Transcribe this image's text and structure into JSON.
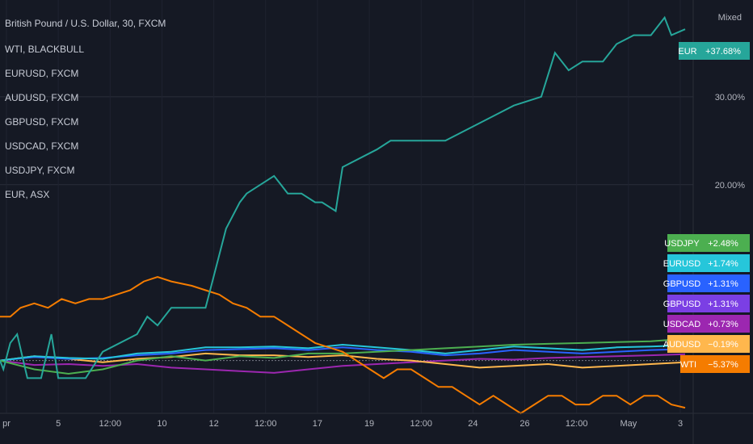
{
  "header": {
    "main_series": "British Pound / U.S. Dollar, 30, FXCM",
    "scale_mode": "Mixed"
  },
  "legend": [
    "WTI, BLACKBULL",
    "EURUSD, FXCM",
    "AUDUSD, FXCM",
    "GBPUSD, FXCM",
    "USDCAD, FXCM",
    "USDJPY, FXCM",
    "EUR, ASX"
  ],
  "chart_data": {
    "type": "line",
    "percent_scale": true,
    "ylim": [
      -6,
      41
    ],
    "y_ticks": [
      {
        "value": 20,
        "label": "20.00%"
      },
      {
        "value": 30,
        "label": "30.00%"
      }
    ],
    "x_ticks": [
      "pr",
      "5",
      "12:00",
      "10",
      "12",
      "12:00",
      "17",
      "19",
      "12:00",
      "24",
      "26",
      "12:00",
      "May",
      "3"
    ],
    "grid": true,
    "series": [
      {
        "name": "EUR",
        "color": "#26a69a",
        "label": "+37.68%",
        "points": [
          [
            0,
            0
          ],
          [
            1,
            -1
          ],
          [
            3,
            2
          ],
          [
            5,
            3
          ],
          [
            8,
            -2
          ],
          [
            12,
            -2
          ],
          [
            15,
            3
          ],
          [
            17,
            -2
          ],
          [
            25,
            -2
          ],
          [
            30,
            1
          ],
          [
            40,
            3
          ],
          [
            43,
            5
          ],
          [
            46,
            4
          ],
          [
            50,
            6
          ],
          [
            60,
            6
          ],
          [
            62,
            9
          ],
          [
            66,
            15
          ],
          [
            70,
            18
          ],
          [
            72,
            19
          ],
          [
            80,
            21
          ],
          [
            82,
            20
          ],
          [
            84,
            19
          ],
          [
            88,
            19
          ],
          [
            92,
            18
          ],
          [
            94,
            18
          ],
          [
            98,
            17
          ],
          [
            100,
            22
          ],
          [
            110,
            24
          ],
          [
            114,
            25
          ],
          [
            120,
            25
          ],
          [
            130,
            25
          ],
          [
            140,
            27
          ],
          [
            145,
            28
          ],
          [
            150,
            29
          ],
          [
            158,
            30
          ],
          [
            162,
            35
          ],
          [
            166,
            33
          ],
          [
            170,
            34
          ],
          [
            176,
            34
          ],
          [
            180,
            36
          ],
          [
            185,
            37
          ],
          [
            190,
            37
          ],
          [
            194,
            39
          ],
          [
            196,
            37
          ],
          [
            200,
            37.68
          ]
        ]
      },
      {
        "name": "WTI",
        "color": "#f57c00",
        "label": "−5.37%",
        "points": [
          [
            0,
            5
          ],
          [
            3,
            5
          ],
          [
            6,
            6
          ],
          [
            10,
            6.5
          ],
          [
            14,
            6
          ],
          [
            18,
            7
          ],
          [
            22,
            6.5
          ],
          [
            26,
            7
          ],
          [
            30,
            7
          ],
          [
            34,
            7.5
          ],
          [
            38,
            8
          ],
          [
            42,
            9
          ],
          [
            46,
            9.5
          ],
          [
            50,
            9
          ],
          [
            56,
            8.5
          ],
          [
            60,
            8
          ],
          [
            64,
            7.5
          ],
          [
            68,
            6.5
          ],
          [
            72,
            6
          ],
          [
            76,
            5
          ],
          [
            80,
            5
          ],
          [
            84,
            4
          ],
          [
            88,
            3
          ],
          [
            92,
            2
          ],
          [
            96,
            1.5
          ],
          [
            100,
            1
          ],
          [
            104,
            0
          ],
          [
            108,
            -1
          ],
          [
            112,
            -2
          ],
          [
            116,
            -1
          ],
          [
            120,
            -1
          ],
          [
            124,
            -2
          ],
          [
            128,
            -3
          ],
          [
            132,
            -3
          ],
          [
            136,
            -4
          ],
          [
            140,
            -5
          ],
          [
            144,
            -4
          ],
          [
            148,
            -5
          ],
          [
            152,
            -6
          ],
          [
            156,
            -5
          ],
          [
            160,
            -4
          ],
          [
            164,
            -4
          ],
          [
            168,
            -5
          ],
          [
            172,
            -5
          ],
          [
            176,
            -4
          ],
          [
            180,
            -4
          ],
          [
            184,
            -5
          ],
          [
            188,
            -4
          ],
          [
            192,
            -4
          ],
          [
            196,
            -5
          ],
          [
            200,
            -5.37
          ]
        ]
      },
      {
        "name": "USDJPY",
        "color": "#4caf50",
        "label": "+2.48%",
        "points": [
          [
            0,
            0
          ],
          [
            10,
            -1
          ],
          [
            20,
            -1.5
          ],
          [
            30,
            -1
          ],
          [
            40,
            0
          ],
          [
            50,
            0.5
          ],
          [
            60,
            0
          ],
          [
            70,
            0.5
          ],
          [
            80,
            0.3
          ],
          [
            90,
            0.8
          ],
          [
            100,
            0.8
          ],
          [
            110,
            1
          ],
          [
            120,
            1.2
          ],
          [
            130,
            1.4
          ],
          [
            140,
            1.6
          ],
          [
            150,
            1.8
          ],
          [
            160,
            1.9
          ],
          [
            170,
            2
          ],
          [
            180,
            2.1
          ],
          [
            190,
            2.2
          ],
          [
            200,
            2.48
          ]
        ]
      },
      {
        "name": "EURUSD",
        "color": "#26c6da",
        "label": "+1.74%",
        "points": [
          [
            0,
            0
          ],
          [
            10,
            0.5
          ],
          [
            20,
            0.3
          ],
          [
            30,
            0.2
          ],
          [
            40,
            0.8
          ],
          [
            50,
            1
          ],
          [
            60,
            1.5
          ],
          [
            70,
            1.5
          ],
          [
            80,
            1.6
          ],
          [
            90,
            1.4
          ],
          [
            100,
            1.8
          ],
          [
            110,
            1.5
          ],
          [
            120,
            1.2
          ],
          [
            130,
            0.8
          ],
          [
            140,
            1.2
          ],
          [
            150,
            1.6
          ],
          [
            160,
            1.4
          ],
          [
            170,
            1.2
          ],
          [
            180,
            1.5
          ],
          [
            190,
            1.6
          ],
          [
            200,
            1.74
          ]
        ]
      },
      {
        "name": "GBPUSD",
        "color": "#2962ff",
        "label": "+1.31%",
        "points": [
          [
            0,
            0
          ],
          [
            10,
            0.4
          ],
          [
            20,
            0.2
          ],
          [
            30,
            0.3
          ],
          [
            40,
            0.6
          ],
          [
            50,
            0.8
          ],
          [
            60,
            1.2
          ],
          [
            70,
            1.3
          ],
          [
            80,
            1.4
          ],
          [
            90,
            1.2
          ],
          [
            100,
            1.5
          ],
          [
            110,
            1.2
          ],
          [
            120,
            1
          ],
          [
            130,
            0.6
          ],
          [
            140,
            0.8
          ],
          [
            150,
            1.2
          ],
          [
            160,
            1
          ],
          [
            170,
            0.8
          ],
          [
            180,
            1
          ],
          [
            190,
            1.2
          ],
          [
            200,
            1.31
          ]
        ]
      },
      {
        "name": "AUDUSD",
        "color": "#ffb74d",
        "label": "−0.19%",
        "points": [
          [
            0,
            0
          ],
          [
            10,
            0.5
          ],
          [
            20,
            0.2
          ],
          [
            30,
            -0.2
          ],
          [
            40,
            0.2
          ],
          [
            50,
            0.4
          ],
          [
            60,
            0.8
          ],
          [
            70,
            0.6
          ],
          [
            80,
            0.6
          ],
          [
            90,
            0.4
          ],
          [
            100,
            0.6
          ],
          [
            110,
            0.2
          ],
          [
            120,
            0
          ],
          [
            130,
            -0.4
          ],
          [
            140,
            -0.8
          ],
          [
            150,
            -0.6
          ],
          [
            160,
            -0.4
          ],
          [
            170,
            -0.8
          ],
          [
            180,
            -0.6
          ],
          [
            190,
            -0.4
          ],
          [
            200,
            -0.19
          ]
        ]
      },
      {
        "name": "USDCAD",
        "color": "#9c27b0",
        "label": "+0.73%",
        "points": [
          [
            0,
            0
          ],
          [
            10,
            -0.5
          ],
          [
            20,
            -0.4
          ],
          [
            30,
            -0.6
          ],
          [
            40,
            -0.4
          ],
          [
            50,
            -0.8
          ],
          [
            60,
            -1
          ],
          [
            70,
            -1.2
          ],
          [
            80,
            -1.4
          ],
          [
            90,
            -1
          ],
          [
            100,
            -0.6
          ],
          [
            110,
            -0.4
          ],
          [
            120,
            -0.2
          ],
          [
            130,
            0
          ],
          [
            140,
            0.2
          ],
          [
            150,
            0.1
          ],
          [
            160,
            0.3
          ],
          [
            170,
            0.4
          ],
          [
            180,
            0.5
          ],
          [
            190,
            0.6
          ],
          [
            200,
            0.73
          ]
        ]
      }
    ]
  }
}
